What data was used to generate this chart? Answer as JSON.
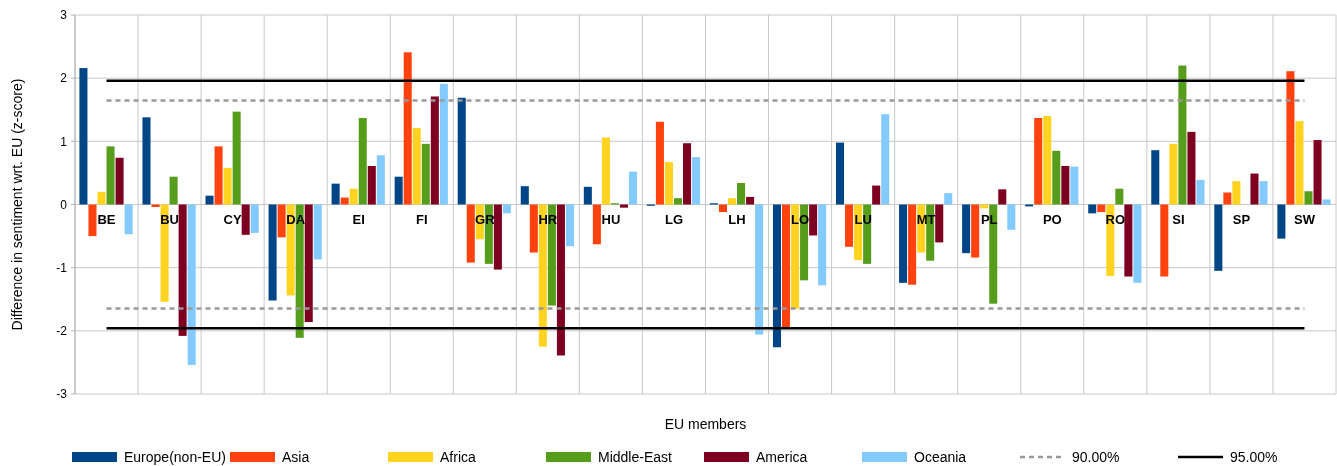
{
  "chart_data": {
    "type": "bar",
    "ylabel": "Difference in sentiment wrt. EU (z-score)",
    "xlabel": "EU members",
    "categories": [
      "BE",
      "BU",
      "CY",
      "DA",
      "EI",
      "FI",
      "GR",
      "HR",
      "HU",
      "LG",
      "LH",
      "LO",
      "LU",
      "MT",
      "PL",
      "PO",
      "RO",
      "SI",
      "SP",
      "SW"
    ],
    "ylim": [
      -3,
      3
    ],
    "yticks": [
      -3,
      -2,
      -1,
      0,
      1,
      2,
      3
    ],
    "grid": true,
    "legend": "bottom",
    "series": [
      {
        "name": "Europe(non-EU)",
        "color": "#004586",
        "values": [
          2.16,
          1.38,
          0.14,
          -1.52,
          0.33,
          0.44,
          1.69,
          0.29,
          0.28,
          -0.02,
          0.02,
          -2.26,
          0.98,
          -1.24,
          -0.77,
          -0.03,
          -0.14,
          0.86,
          -1.05,
          -0.54
        ]
      },
      {
        "name": "Asia",
        "color": "#ff420e",
        "values": [
          -0.5,
          -0.04,
          0.92,
          -0.52,
          0.11,
          2.41,
          -0.92,
          -0.76,
          -0.63,
          1.31,
          -0.12,
          -1.96,
          -0.67,
          -1.27,
          -0.84,
          1.37,
          -0.12,
          -1.14,
          0.19,
          2.11
        ]
      },
      {
        "name": "Africa",
        "color": "#ffd320",
        "values": [
          0.2,
          -1.54,
          0.58,
          -1.44,
          0.25,
          1.21,
          -0.55,
          -2.25,
          1.06,
          0.67,
          0.1,
          -1.65,
          -0.88,
          -0.76,
          -0.06,
          1.4,
          -1.13,
          0.96,
          0.37,
          1.32
        ]
      },
      {
        "name": "Middle-East",
        "color": "#579d1c",
        "values": [
          0.92,
          0.44,
          1.47,
          -2.11,
          1.37,
          0.96,
          -0.94,
          -1.6,
          0.02,
          0.1,
          0.34,
          -1.2,
          -0.94,
          -0.89,
          -1.57,
          0.85,
          0.25,
          2.2,
          0,
          0.21
        ]
      },
      {
        "name": "America",
        "color": "#7e0021",
        "values": [
          0.74,
          -2.08,
          -0.48,
          -1.86,
          0.61,
          1.71,
          -1.03,
          -2.39,
          -0.05,
          0.97,
          0.12,
          -0.49,
          0.3,
          -0.6,
          0.24,
          0.61,
          -1.14,
          1.15,
          0.49,
          1.02
        ]
      },
      {
        "name": "Oceania",
        "color": "#83caff",
        "values": [
          -0.47,
          -2.54,
          -0.45,
          -0.87,
          0.78,
          1.91,
          -0.14,
          -0.66,
          0.52,
          0.75,
          -2.06,
          -1.28,
          1.43,
          0.18,
          -0.4,
          0.6,
          -1.24,
          0.39,
          0.37,
          0.08
        ]
      },
      {
        "name": "90.00%",
        "type": "line",
        "color": "#999999",
        "line_style": "dashed",
        "values": [
          1.645,
          1.645,
          1.645,
          1.645,
          1.645,
          1.645,
          1.645,
          1.645,
          1.645,
          1.645,
          1.645,
          1.645,
          1.645,
          1.645,
          1.645,
          1.645,
          1.645,
          1.645,
          1.645,
          1.645
        ]
      },
      {
        "type": "line",
        "color": "#999999",
        "line_style": "dashed",
        "values": [
          -1.645,
          -1.645,
          -1.645,
          -1.645,
          -1.645,
          -1.645,
          -1.645,
          -1.645,
          -1.645,
          -1.645,
          -1.645,
          -1.645,
          -1.645,
          -1.645,
          -1.645,
          -1.645,
          -1.645,
          -1.645,
          -1.645,
          -1.645
        ]
      },
      {
        "name": "95.00%",
        "type": "line",
        "color": "#000000",
        "line_style": "solid",
        "values": [
          1.96,
          1.96,
          1.96,
          1.96,
          1.96,
          1.96,
          1.96,
          1.96,
          1.96,
          1.96,
          1.96,
          1.96,
          1.96,
          1.96,
          1.96,
          1.96,
          1.96,
          1.96,
          1.96,
          1.96
        ]
      },
      {
        "type": "line",
        "color": "#000000",
        "line_style": "solid",
        "values": [
          -1.96,
          -1.96,
          -1.96,
          -1.96,
          -1.96,
          -1.96,
          -1.96,
          -1.96,
          -1.96,
          -1.96,
          -1.96,
          -1.96,
          -1.96,
          -1.96,
          -1.96,
          -1.96,
          -1.96,
          -1.96,
          -1.96,
          -1.96
        ]
      }
    ]
  }
}
